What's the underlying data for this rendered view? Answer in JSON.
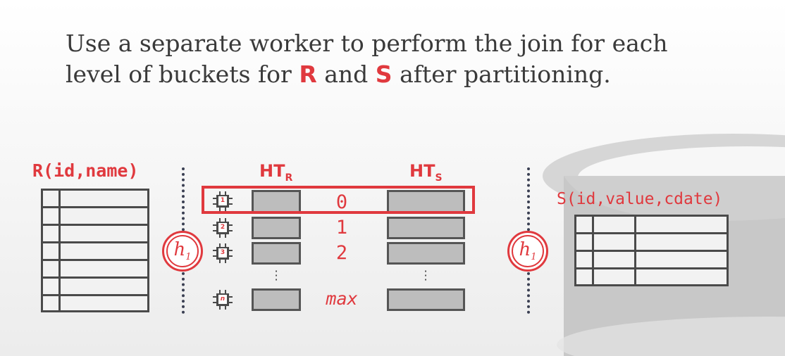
{
  "heading": {
    "line1": "Use a separate worker to perform the join for each",
    "line2_pre": "level of buckets for",
    "r": "R",
    "and": "and",
    "s": "S",
    "line2_post": "after partitioning."
  },
  "table_r": {
    "label": "R(id,name)"
  },
  "table_s": {
    "label": "S(id,value,cdate)"
  },
  "ht_r": {
    "base": "HT",
    "sub": "R"
  },
  "ht_s": {
    "base": "HT",
    "sub": "S"
  },
  "hash_fn": {
    "name": "h",
    "sub": "1"
  },
  "levels": [
    "0",
    "1",
    "2",
    "max"
  ],
  "workers": [
    "1",
    "2",
    "3",
    "n"
  ],
  "colors": {
    "accent": "#e0393e",
    "dark": "#4a4a4a",
    "bucket": "#bdbdbd"
  }
}
